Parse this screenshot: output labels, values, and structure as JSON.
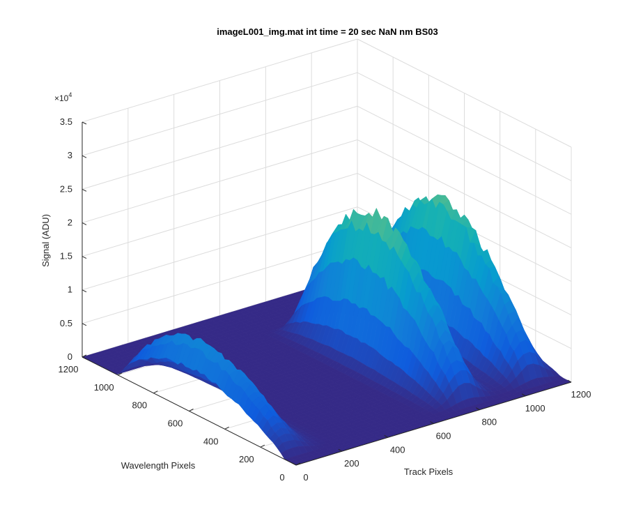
{
  "chart_data": {
    "type": "surface",
    "title": "imageL001_img.mat int time = 20 sec  NaN nm BS03",
    "xlabel": "Track Pixels",
    "ylabel": "Wavelength Pixels",
    "zlabel": "Signal (ADU)",
    "z_exponent_label": "×10",
    "z_exponent_power": "4",
    "xlim": [
      0,
      1200
    ],
    "ylim": [
      0,
      1200
    ],
    "zlim": [
      0,
      35000
    ],
    "x_ticks": [
      "0",
      "200",
      "400",
      "600",
      "800",
      "1000",
      "1200"
    ],
    "y_ticks": [
      "0",
      "200",
      "400",
      "600",
      "800",
      "1000",
      "1200"
    ],
    "z_ticks": [
      "0",
      "0.5",
      "1",
      "1.5",
      "2",
      "2.5",
      "3",
      "3.5"
    ],
    "grid": true,
    "colormap": "parula",
    "peaks": [
      {
        "track_center": 50,
        "track_width": 55,
        "wl_start": 70,
        "wl_end": 1130,
        "max_signal": 13000
      },
      {
        "track_center": 800,
        "track_width": 55,
        "wl_start": 60,
        "wl_end": 1120,
        "max_signal": 28000
      },
      {
        "track_center": 1090,
        "track_width": 55,
        "wl_start": 60,
        "wl_end": 1120,
        "max_signal": 27000
      }
    ]
  }
}
